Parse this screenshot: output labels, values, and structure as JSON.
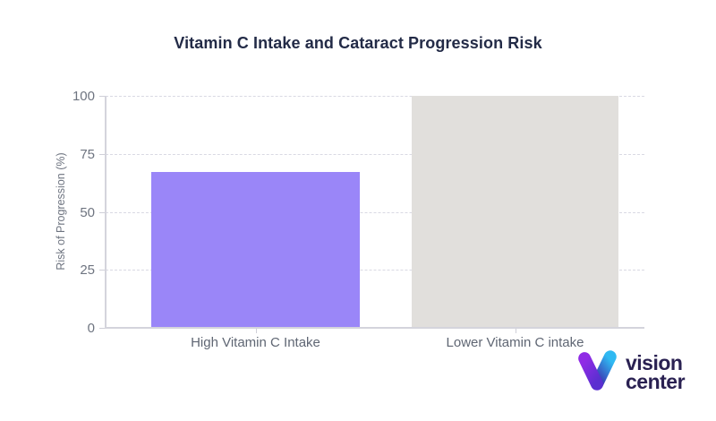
{
  "chart_data": {
    "type": "bar",
    "title": "Vitamin C Intake and Cataract Progression Risk",
    "ylabel": "Risk of Progression (%)",
    "xlabel": "",
    "categories": [
      "High Vitamin C Intake",
      "Lower Vitamin C intake"
    ],
    "values": [
      67,
      100
    ],
    "bar_colors": [
      "#9a86f8",
      "#e1dfdc"
    ],
    "ylim": [
      0,
      100
    ],
    "yticks": [
      0,
      25,
      50,
      75,
      100
    ],
    "grid": "horizontal-dashed",
    "legend": "none"
  },
  "logo": {
    "word1": "vision",
    "word2": "center",
    "text_color": "#2a2152",
    "icon_colors": {
      "left_arm_top": "#8f2be5",
      "left_arm_bottom": "#5a2fd0",
      "right_arm_top": "#2fb9f2",
      "right_arm_bottom": "#3c2fae"
    }
  },
  "style": {
    "title_color": "#232b47",
    "axis_color": "#d4d4dc",
    "grid_color": "#d9d9e3",
    "tick_label_color": "#6e7480",
    "category_label_color": "#5f6673",
    "background": "#ffffff"
  }
}
